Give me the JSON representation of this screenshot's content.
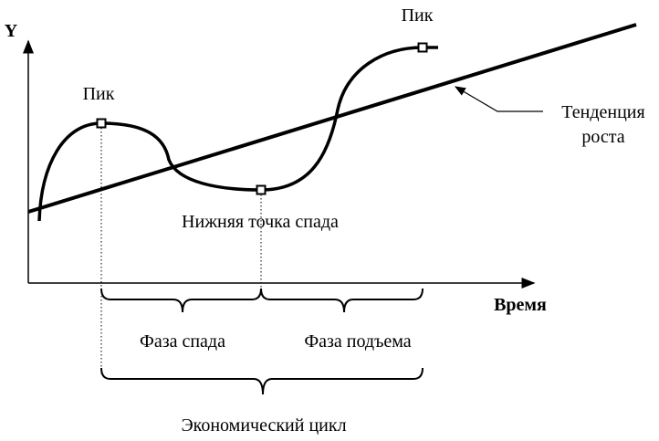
{
  "axes": {
    "y_label": "Y",
    "x_label": "Время"
  },
  "points": [
    {
      "label": "Пик"
    },
    {
      "label": "Нижняя точка спада"
    },
    {
      "label": "Пик"
    }
  ],
  "trend": {
    "label_lines": [
      "Тенденция",
      "роста"
    ]
  },
  "phases": [
    {
      "label": "Фаза спада"
    },
    {
      "label": "Фаза подъема"
    }
  ],
  "cycle": {
    "label": "Экономический цикл"
  }
}
